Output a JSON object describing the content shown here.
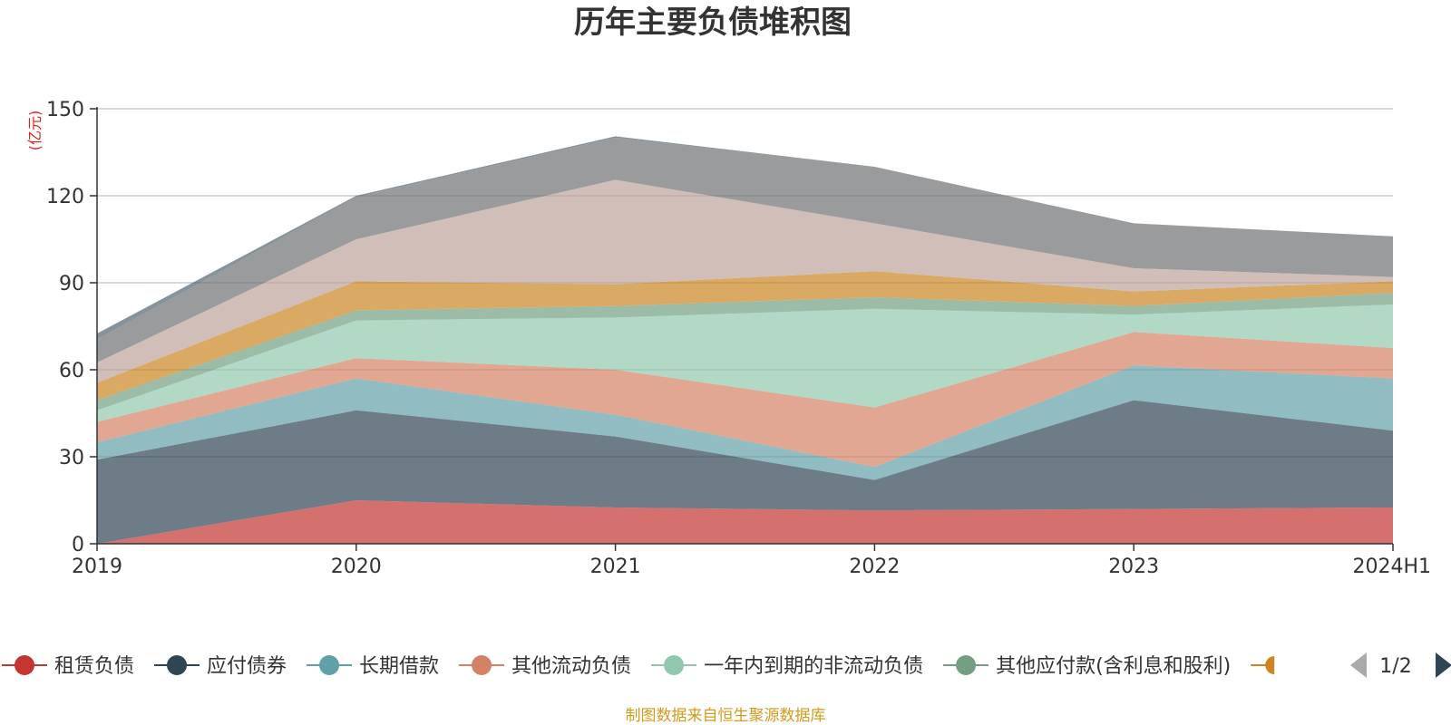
{
  "chart_data": {
    "type": "area",
    "stacked": true,
    "title": "历年主要负债堆积图",
    "y_unit_label": "(亿元)",
    "categories": [
      "2019",
      "2020",
      "2021",
      "2022",
      "2023",
      "2024H1"
    ],
    "ylim": [
      0,
      150
    ],
    "yticks": [
      "0",
      "30",
      "60",
      "90",
      "120",
      "150"
    ],
    "grid": true,
    "legend_position": "bottom",
    "series": [
      {
        "name": "租赁负债",
        "color": "#c23531",
        "values": [
          0,
          15,
          12.5,
          11.5,
          12,
          12.5
        ]
      },
      {
        "name": "应付债券",
        "color": "#2f4554",
        "values": [
          29,
          31,
          24.5,
          10.5,
          37.5,
          26.5
        ]
      },
      {
        "name": "长期借款",
        "color": "#61a0a8",
        "values": [
          6,
          11,
          7.5,
          4.5,
          12,
          18
        ]
      },
      {
        "name": "其他流动负债",
        "color": "#d48265",
        "values": [
          7,
          7,
          15.5,
          20.5,
          11.5,
          10.5
        ]
      },
      {
        "name": "一年内到期的非流动负债",
        "color": "#91c7ae",
        "values": [
          4,
          13,
          18,
          34,
          6,
          15
        ]
      },
      {
        "name": "其他应付款(含利息和股利)",
        "color": "#749f83",
        "values": [
          3.5,
          3.5,
          4,
          4,
          3,
          4
        ]
      },
      {
        "name": "",
        "color": "#ca8622",
        "values": [
          6,
          10,
          7.5,
          9,
          5,
          4
        ]
      },
      {
        "name": "",
        "color": "#bda29a",
        "values": [
          7,
          14.5,
          36,
          16.5,
          8,
          1.5
        ]
      },
      {
        "name": "",
        "color": "#6e7074",
        "values": [
          8,
          14.5,
          14.5,
          19.5,
          15.5,
          14
        ]
      },
      {
        "name": "",
        "color": "#546570",
        "values": [
          2,
          0.5,
          0.5,
          0,
          0,
          0
        ]
      }
    ]
  },
  "legend": {
    "items": [
      "租赁负债",
      "应付债券",
      "长期借款",
      "其他流动负债",
      "一年内到期的非流动负债",
      "其他应付款(含利息和股利)"
    ],
    "page": "1/2"
  },
  "source_note": "制图数据来自恒生聚源数据库"
}
